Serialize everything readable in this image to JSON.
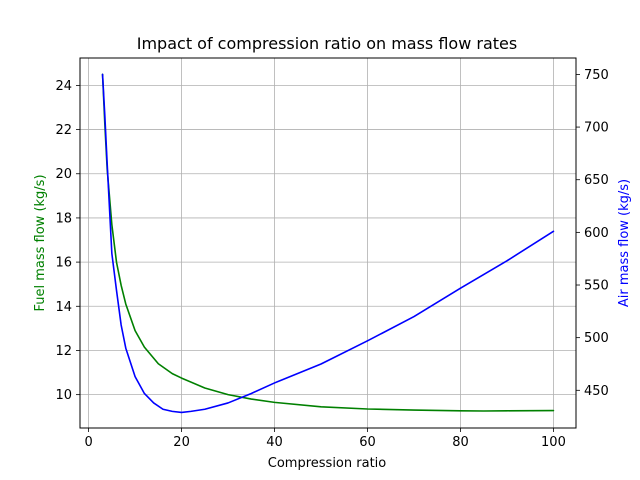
{
  "chart_data": {
    "type": "line",
    "title": "Impact of compression ratio on mass flow rates",
    "xlabel": "Compression ratio",
    "ylabel_left": "Fuel mass flow (kg/s)",
    "ylabel_right": "Air mass flow (kg/s)",
    "xlim": [
      -1.85,
      104.85
    ],
    "ylim_left": [
      8.49,
      25.24
    ],
    "ylim_right": [
      414.2,
      765.6
    ],
    "xticks": [
      0,
      20,
      40,
      60,
      80,
      100
    ],
    "yticks_left": [
      10,
      12,
      14,
      16,
      18,
      20,
      22,
      24
    ],
    "yticks_right": [
      450,
      500,
      550,
      600,
      650,
      700,
      750
    ],
    "grid": true,
    "series": [
      {
        "name": "",
        "axis": "left",
        "color": "#008000",
        "x": [
          3,
          3.5,
          4,
          5,
          6,
          7,
          8,
          10,
          12,
          15,
          18,
          20,
          25,
          30,
          35,
          40,
          50,
          60,
          70,
          80,
          85,
          90,
          100
        ],
        "y": [
          24.5,
          22.2,
          20.2,
          17.7,
          16.0,
          14.95,
          14.1,
          12.9,
          12.15,
          11.4,
          10.95,
          10.75,
          10.3,
          10.0,
          9.8,
          9.65,
          9.45,
          9.35,
          9.3,
          9.27,
          9.26,
          9.27,
          9.28
        ]
      },
      {
        "name": "",
        "axis": "right",
        "color": "#0000ff",
        "x": [
          3,
          3.5,
          4,
          5,
          6,
          7,
          8,
          10,
          12,
          14,
          16,
          18,
          20,
          22,
          25,
          30,
          35,
          40,
          50,
          60,
          70,
          80,
          90,
          100
        ],
        "y": [
          750,
          710,
          665,
          580,
          545,
          512,
          490,
          463,
          447,
          438,
          432,
          430,
          429,
          430,
          432,
          438,
          447,
          457,
          475,
          497,
          520,
          547,
          573,
          601
        ]
      }
    ]
  }
}
